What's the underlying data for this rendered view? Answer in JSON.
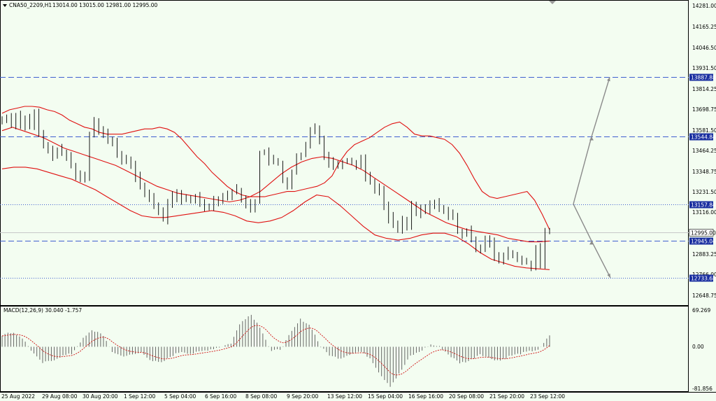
{
  "header": {
    "symbol": "CNA50_2209,H1",
    "ohlc": "13014.00 13015.00 12981.00 12995.00",
    "macd_label": "MACD(12,26,9) 30.040 -1.757"
  },
  "colors": {
    "background": "#f3fdf1",
    "candle": "#000000",
    "bands": "#e01010",
    "hline_dash": "#3f5fcf",
    "hline_dot": "#3f5fcf",
    "arrow": "#8a8a8a",
    "tag_blue": "#1a2fa0",
    "macd_hist": "#555555",
    "macd_signal": "#d01010"
  },
  "price_axis": {
    "min": 12600,
    "max": 14300,
    "ticks": [
      "14281.00",
      "14165.25",
      "14046.50",
      "13931.50",
      "13814.25",
      "13698.75",
      "13581.50",
      "13464.25",
      "13348.75",
      "13231.50",
      "13116.00",
      "12883.25",
      "12766.00",
      "12648.75"
    ]
  },
  "macd_axis": {
    "min": -90,
    "max": 75,
    "ticks": [
      "69.269",
      "0.00",
      "-81.856"
    ]
  },
  "time_axis": {
    "labels": [
      "25 Aug 2022",
      "29 Aug 08:00",
      "30 Aug 20:00",
      "1 Sep 12:00",
      "5 Sep 04:00",
      "6 Sep 16:00",
      "8 Sep 08:00",
      "9 Sep 20:00",
      "13 Sep 12:00",
      "15 Sep 04:00",
      "16 Sep 16:00",
      "20 Sep 08:00",
      "21 Sep 20:00",
      "23 Sep 12:00"
    ]
  },
  "levels": [
    {
      "value": 13887.88,
      "label": "13887.88",
      "style": "dash"
    },
    {
      "value": 13544.84,
      "label": "13544.84",
      "style": "dash"
    },
    {
      "value": 13157.84,
      "label": "13157.84",
      "style": "dot"
    },
    {
      "value": 12995.0,
      "label": "12995.00",
      "style": "current"
    },
    {
      "value": 12945.04,
      "label": "12945.04",
      "style": "dash"
    },
    {
      "value": 12733.68,
      "label": "12733.68",
      "style": "dot"
    }
  ],
  "chart_data": {
    "type": "candlestick",
    "title": "CNA50_2209,H1",
    "ylim": [
      12600,
      14300
    ],
    "candles": [
      13640,
      13660,
      13620,
      13670,
      13610,
      13650,
      13600,
      13680,
      13560,
      13500,
      13460,
      13440,
      13470,
      13450,
      13430,
      13380,
      13330,
      13300,
      13320,
      13560,
      13640,
      13590,
      13570,
      13520,
      13510,
      13450,
      13400,
      13420,
      13380,
      13310,
      13260,
      13220,
      13200,
      13150,
      13110,
      13070,
      13170,
      13200,
      13210,
      13180,
      13190,
      13180,
      13200,
      13170,
      13150,
      13140,
      13180,
      13190,
      13200,
      13210,
      13230,
      13240,
      13180,
      13160,
      13140,
      13170,
      13450,
      13460,
      13410,
      13400,
      13390,
      13300,
      13260,
      13340,
      13420,
      13440,
      13490,
      13580,
      13600,
      13530,
      13440,
      13400,
      13380,
      13390,
      13400,
      13410,
      13400,
      13380,
      13420,
      13320,
      13290,
      13250,
      13230,
      13150,
      13080,
      13040,
      13020,
      13060,
      13040,
      13150,
      13100,
      13120,
      13130,
      13150,
      13160,
      13140,
      13120,
      13100,
      13080,
      13000,
      12980,
      13000,
      12960,
      12900,
      12910,
      12960,
      12940,
      12850,
      12830,
      12860,
      12880,
      12860,
      12840,
      12830,
      12820,
      12800,
      12900,
      12800,
      13000,
      12995
    ],
    "bands_upper": [
      13680,
      13700,
      13710,
      13720,
      13720,
      13715,
      13700,
      13690,
      13670,
      13640,
      13620,
      13600,
      13590,
      13570,
      13560,
      13560,
      13560,
      13570,
      13580,
      13590,
      13590,
      13600,
      13590,
      13570,
      13530,
      13480,
      13430,
      13390,
      13340,
      13300,
      13260,
      13230,
      13210,
      13200,
      13200,
      13200,
      13210,
      13220,
      13230,
      13230,
      13240,
      13250,
      13260,
      13280,
      13320,
      13400,
      13460,
      13500,
      13520,
      13540,
      13570,
      13600,
      13620,
      13630,
      13600,
      13560,
      13550,
      13550,
      13540,
      13530,
      13500,
      13450,
      13380,
      13300,
      13230,
      13200,
      13190,
      13200,
      13210,
      13220,
      13230,
      13180,
      13100,
      13010
    ],
    "bands_mid": [
      13580,
      13600,
      13580,
      13560,
      13540,
      13510,
      13480,
      13460,
      13440,
      13420,
      13400,
      13380,
      13350,
      13320,
      13290,
      13260,
      13240,
      13220,
      13210,
      13200,
      13190,
      13180,
      13170,
      13180,
      13200,
      13230,
      13280,
      13330,
      13370,
      13400,
      13420,
      13430,
      13420,
      13400,
      13380,
      13350,
      13310,
      13270,
      13230,
      13190,
      13150,
      13110,
      13080,
      13050,
      13030,
      13010,
      13000,
      12990,
      12980,
      12960,
      12950,
      12940,
      12940,
      12945
    ],
    "bands_lower": [
      13360,
      13370,
      13370,
      13360,
      13340,
      13320,
      13300,
      13270,
      13240,
      13200,
      13160,
      13120,
      13090,
      13080,
      13080,
      13090,
      13100,
      13110,
      13120,
      13110,
      13090,
      13060,
      13050,
      13060,
      13080,
      13120,
      13170,
      13210,
      13200,
      13150,
      13090,
      13030,
      12980,
      12960,
      12950,
      12960,
      12980,
      12990,
      12990,
      12970,
      12930,
      12880,
      12840,
      12820,
      12800,
      12790,
      12785,
      12780
    ]
  }
}
